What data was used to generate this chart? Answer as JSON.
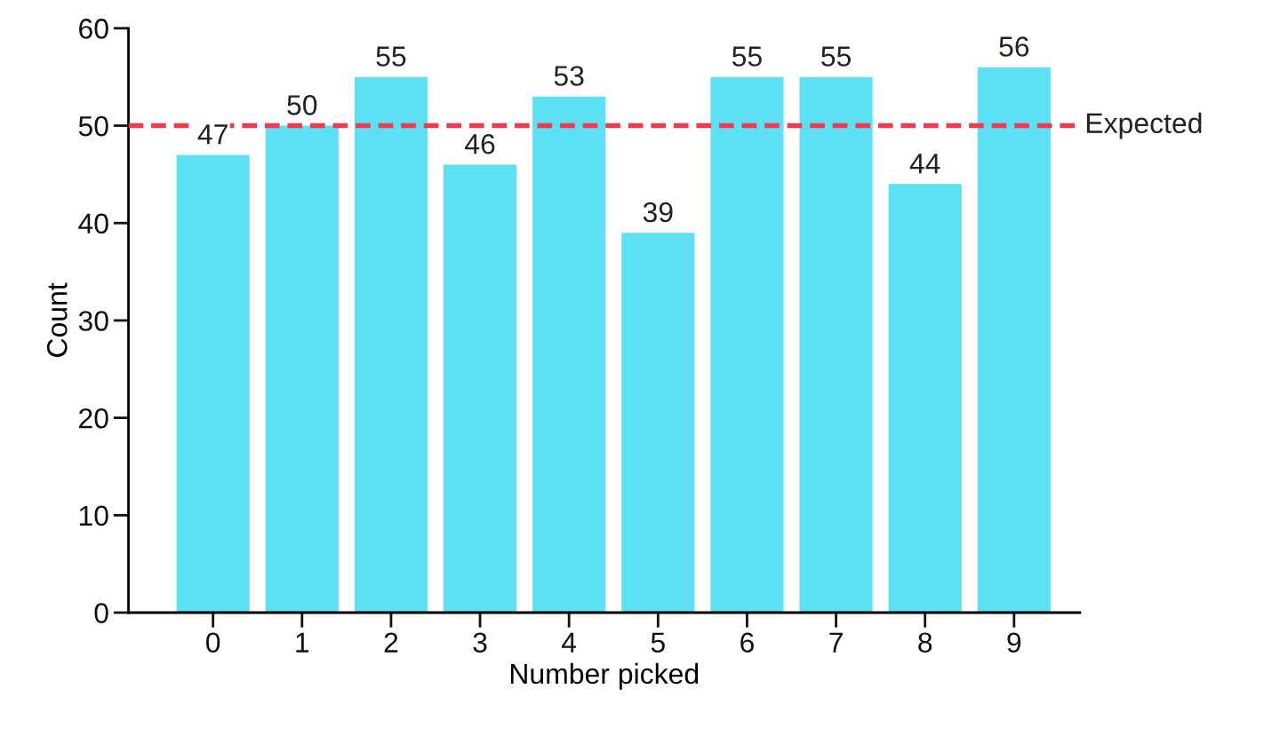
{
  "chart_data": {
    "type": "bar",
    "xlabel": "Number picked",
    "ylabel": "Count",
    "categories": [
      "0",
      "1",
      "2",
      "3",
      "4",
      "5",
      "6",
      "7",
      "8",
      "9"
    ],
    "values": [
      47,
      50,
      55,
      46,
      53,
      39,
      55,
      55,
      44,
      56
    ],
    "color": "#5ddff4",
    "data_labels": true,
    "ylim": [
      0,
      60
    ],
    "yticks": [
      0,
      10,
      20,
      30,
      40,
      50,
      60
    ],
    "ref_lines": [
      {
        "axis": "y",
        "value": 50,
        "label": "Expected",
        "color": "#f03a50",
        "line_style": "dashed"
      }
    ]
  }
}
